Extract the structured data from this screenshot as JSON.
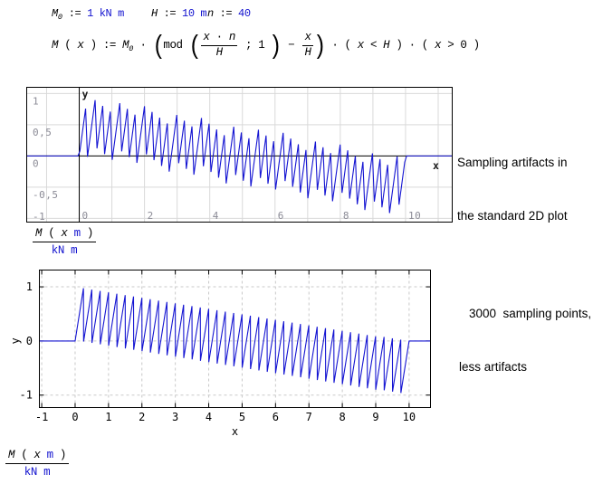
{
  "page": {
    "background": "#ffffff"
  },
  "colors": {
    "accent_blue": "#1212cf",
    "plot_line_blue": "#1414d2",
    "tick_gray": "#8b8b96",
    "grid_gray": "#d9d9d9",
    "dash_gray": "#c9c9c9",
    "axis_black": "#000000"
  },
  "definitions": {
    "m0": [
      {
        "t": "M",
        "i": true,
        "sub": "0"
      },
      {
        "t": " := "
      },
      {
        "t": "1 kN m",
        "b": true
      }
    ],
    "h": [
      {
        "t": "H",
        "i": true
      },
      {
        "t": " := "
      },
      {
        "t": "10 m",
        "b": true
      }
    ],
    "n": [
      {
        "t": "n",
        "i": true
      },
      {
        "t": " := "
      },
      {
        "t": "40",
        "b": true
      }
    ],
    "mx": [
      {
        "t": "M",
        "i": true
      },
      {
        "t": " ( "
      },
      {
        "t": "x",
        "i": true
      },
      {
        "t": " ) := "
      },
      {
        "t": "M",
        "i": true,
        "sub": "0"
      },
      {
        "t": " · "
      },
      {
        "big": "("
      },
      {
        "t": "mod "
      },
      {
        "big": "("
      },
      {
        "frac": {
          "num": [
            {
              "t": "x",
              "i": true
            },
            {
              "t": " · "
            },
            {
              "t": "n",
              "i": true
            }
          ],
          "den": [
            {
              "t": "H",
              "i": true
            }
          ]
        }
      },
      {
        "t": " ; 1 "
      },
      {
        "big": ")"
      },
      {
        "t": " − "
      },
      {
        "frac": {
          "num": [
            {
              "t": "x",
              "i": true
            }
          ],
          "den": [
            {
              "t": "H",
              "i": true
            }
          ]
        }
      },
      {
        "big": ")"
      },
      {
        "t": " · ( "
      },
      {
        "t": "x",
        "i": true
      },
      {
        "t": " < "
      },
      {
        "t": "H",
        "i": true
      },
      {
        "t": " ) · ( "
      },
      {
        "t": "x",
        "i": true
      },
      {
        "t": " > 0 )"
      }
    ]
  },
  "annotations": {
    "plot1": {
      "line1": "Sampling artifacts in",
      "line2": "the standard 2D plot"
    },
    "plot2": {
      "line1": "3000  sampling points,",
      "line2": "less artifacts"
    }
  },
  "axis_expressions": {
    "plot1": {
      "num": [
        {
          "t": "M",
          "i": true
        },
        {
          "t": " ( "
        },
        {
          "t": "x",
          "i": true
        },
        {
          "t": " "
        },
        {
          "t": "m",
          "b": true
        },
        {
          "t": " )"
        }
      ],
      "den": [
        {
          "t": "kN m",
          "b": true
        }
      ]
    },
    "plot2": {
      "num": [
        {
          "t": "M",
          "i": true
        },
        {
          "t": " ( "
        },
        {
          "t": "x",
          "i": true
        },
        {
          "t": " "
        },
        {
          "t": "m",
          "b": true
        },
        {
          "t": " )"
        }
      ],
      "den": [
        {
          "t": "kN m",
          "b": true
        }
      ]
    }
  },
  "chart_data": [
    {
      "id": "standard-2d-plot",
      "type": "line",
      "plot_style": "smath-grid",
      "title": "",
      "xlabel": "x",
      "ylabel": "y",
      "function": "M(x) = M0·(mod(x·n/H; 1) − x/H)·(x<H)·(x>0)",
      "params": {
        "M0": 1,
        "H": 10,
        "n": 40
      },
      "samples": 225,
      "x_window": [
        -1.61,
        11.43
      ],
      "y_window": [
        -1.06,
        1.1
      ],
      "x_ticks": [
        {
          "v": 0,
          "t": "0"
        },
        {
          "v": 2,
          "t": "2"
        },
        {
          "v": 4,
          "t": "4"
        },
        {
          "v": 6,
          "t": "6"
        },
        {
          "v": 8,
          "t": "8"
        },
        {
          "v": 10,
          "t": "10"
        }
      ],
      "y_ticks": [
        {
          "v": 1,
          "t": "1"
        },
        {
          "v": 0.5,
          "t": "0,5"
        },
        {
          "v": 0,
          "t": "0"
        },
        {
          "v": -0.5,
          "t": "-0,5"
        },
        {
          "v": -1,
          "t": "-1"
        }
      ],
      "grid": {
        "x_step": 1,
        "y_step": 0.5
      },
      "line_color": "#1414d2",
      "grid_color": "#d9d9d9",
      "tick_label_color": "#8b8b96"
    },
    {
      "id": "plot-3000-points",
      "type": "line",
      "plot_style": "xy-frame-dashed",
      "title": "",
      "xlabel": "x",
      "ylabel": "y",
      "function": "M(x) = M0·(mod(x·n/H; 1) − x/H)·(x<H)·(x>0)",
      "params": {
        "M0": 1,
        "H": 10,
        "n": 40
      },
      "samples": 3000,
      "x_window": [
        -1.07,
        10.64
      ],
      "y_window": [
        -1.23,
        1.31
      ],
      "x_ticks": [
        {
          "v": -1,
          "t": "-1"
        },
        {
          "v": 0,
          "t": "0"
        },
        {
          "v": 1,
          "t": "1"
        },
        {
          "v": 2,
          "t": "2"
        },
        {
          "v": 3,
          "t": "3"
        },
        {
          "v": 4,
          "t": "4"
        },
        {
          "v": 5,
          "t": "5"
        },
        {
          "v": 6,
          "t": "6"
        },
        {
          "v": 7,
          "t": "7"
        },
        {
          "v": 8,
          "t": "8"
        },
        {
          "v": 9,
          "t": "9"
        },
        {
          "v": 10,
          "t": "10"
        }
      ],
      "y_ticks": [
        {
          "v": 1,
          "t": "1"
        },
        {
          "v": 0,
          "t": "0"
        },
        {
          "v": -1,
          "t": "-1"
        }
      ],
      "line_color": "#1414d2",
      "grid_color": "#c9c9c9",
      "tick_label_color": "#000000"
    }
  ]
}
